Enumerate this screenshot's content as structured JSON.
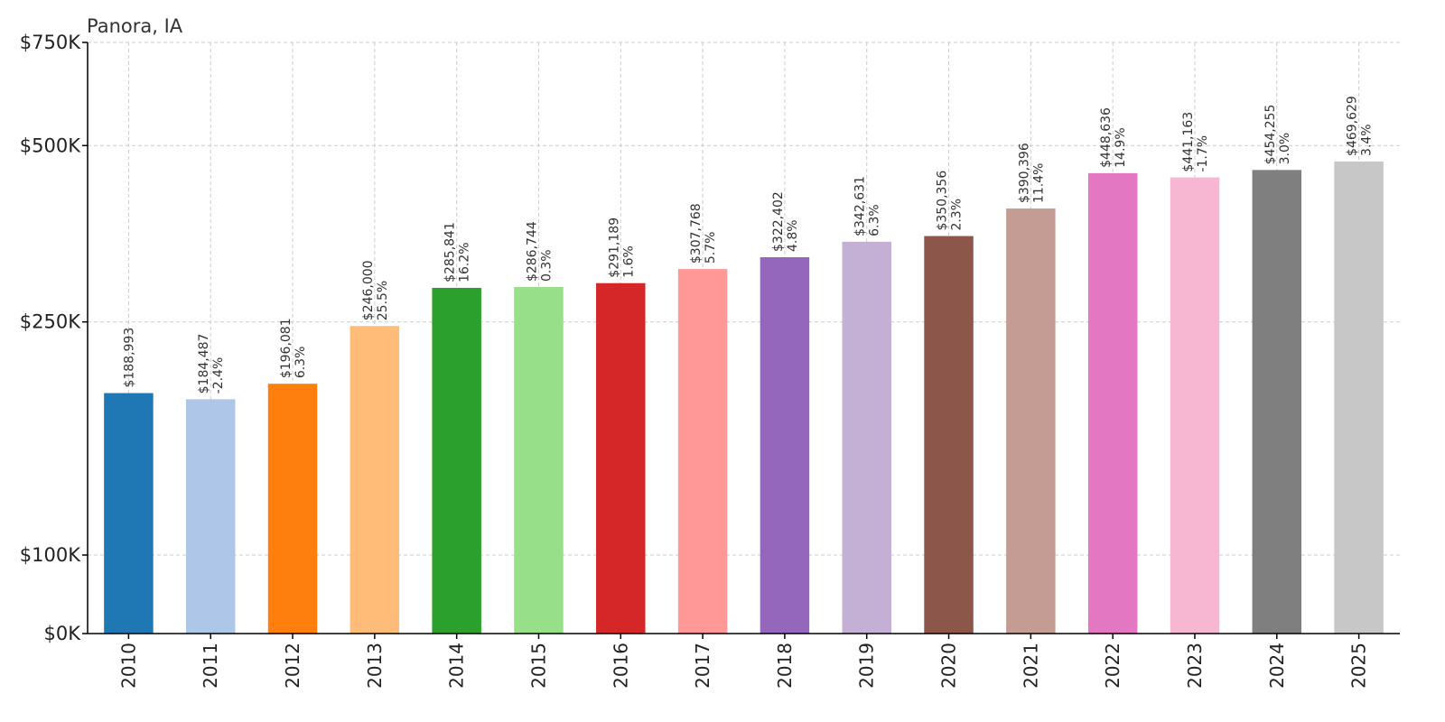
{
  "chart_data": {
    "type": "bar",
    "title": "Panora, IA",
    "xlabel": "",
    "ylabel": "",
    "ylim": [
      0,
      750000
    ],
    "yticks": [
      {
        "value": 0,
        "label": "$0K"
      },
      {
        "value": 100000,
        "label": "$100K"
      },
      {
        "value": 250000,
        "label": "$250K"
      },
      {
        "value": 500000,
        "label": "$500K"
      },
      {
        "value": 750000,
        "label": "$750K"
      }
    ],
    "grid": true,
    "categories": [
      "2010",
      "2011",
      "2012",
      "2013",
      "2014",
      "2015",
      "2016",
      "2017",
      "2018",
      "2019",
      "2020",
      "2021",
      "2022",
      "2023",
      "2024",
      "2025"
    ],
    "values": [
      188993,
      184487,
      196081,
      246000,
      285841,
      286744,
      291189,
      307768,
      322402,
      342631,
      350356,
      390396,
      448636,
      441163,
      454255,
      469629
    ],
    "value_labels": [
      "$188,993",
      "$184,487",
      "$196,081",
      "$246,000",
      "$285,841",
      "$286,744",
      "$291,189",
      "$307,768",
      "$322,402",
      "$342,631",
      "$350,356",
      "$390,396",
      "$448,636",
      "$441,163",
      "$454,255",
      "$469,629"
    ],
    "change_labels": [
      "",
      "-2.4%",
      "6.3%",
      "25.5%",
      "16.2%",
      "0.3%",
      "1.6%",
      "5.7%",
      "4.8%",
      "6.3%",
      "2.3%",
      "11.4%",
      "14.9%",
      "-1.7%",
      "3.0%",
      "3.4%"
    ],
    "colors": [
      "#1f77b4",
      "#aec7e8",
      "#ff7f0e",
      "#ffbb78",
      "#2ca02c",
      "#98df8a",
      "#d62728",
      "#ff9896",
      "#9467bd",
      "#c5b0d5",
      "#8c564b",
      "#c49c94",
      "#e377c2",
      "#f7b6d2",
      "#7f7f7f",
      "#c7c7c7"
    ]
  }
}
